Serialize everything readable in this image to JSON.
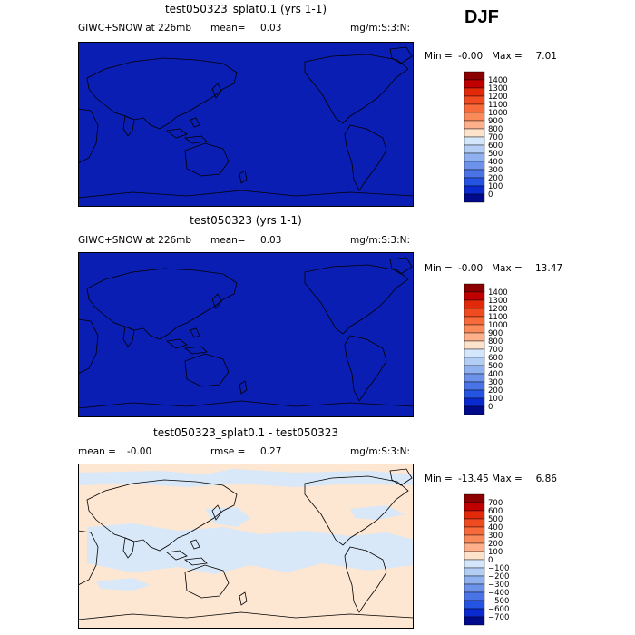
{
  "season": "DJF",
  "chart_data": [
    {
      "type": "heatmap",
      "title": "test050323_splat0.1 (yrs 1-1)",
      "field": "GIWC+SNOW at 226mb",
      "mean_label": "mean=",
      "mean": "0.03",
      "units": "mg/m:S:3:N:",
      "min_label": "Min =",
      "min": "-0.00",
      "max_label": "Max =",
      "max": "7.01",
      "levels": [
        "1400",
        "1300",
        "1200",
        "1100",
        "1000",
        "900",
        "800",
        "700",
        "600",
        "500",
        "400",
        "300",
        "200",
        "100",
        "0"
      ],
      "colors": [
        "#8b0000",
        "#c00000",
        "#e22a0a",
        "#f04a20",
        "#f76a3a",
        "#fb8a5a",
        "#fdb08a",
        "#fee3cc",
        "#d4e6fb",
        "#b3cdf5",
        "#8fb1ef",
        "#6c92ea",
        "#4a73e6",
        "#2454e1",
        "#0a2ad0",
        "#000a8a"
      ],
      "field_color": "#0a1eb4"
    },
    {
      "type": "heatmap",
      "title": "test050323 (yrs 1-1)",
      "field": "GIWC+SNOW at 226mb",
      "mean_label": "mean=",
      "mean": "0.03",
      "units": "mg/m:S:3:N:",
      "min_label": "Min =",
      "min": "-0.00",
      "max_label": "Max =",
      "max": "13.47",
      "levels": [
        "1400",
        "1300",
        "1200",
        "1100",
        "1000",
        "900",
        "800",
        "700",
        "600",
        "500",
        "400",
        "300",
        "200",
        "100",
        "0"
      ],
      "colors": [
        "#8b0000",
        "#c00000",
        "#e22a0a",
        "#f04a20",
        "#f76a3a",
        "#fb8a5a",
        "#fdb08a",
        "#fee3cc",
        "#d4e6fb",
        "#b3cdf5",
        "#8fb1ef",
        "#6c92ea",
        "#4a73e6",
        "#2454e1",
        "#0a2ad0",
        "#000a8a"
      ],
      "field_color": "#0a1eb4"
    },
    {
      "type": "heatmap",
      "title": "test050323_splat0.1 - test050323",
      "mean_label": "mean =",
      "mean": "-0.00",
      "rmse_label": "rmse =",
      "rmse": "0.27",
      "units": "mg/m:S:3:N:",
      "min_label": "Min =",
      "min": "-13.45",
      "max_label": "Max =",
      "max": "6.86",
      "levels": [
        "700",
        "600",
        "500",
        "400",
        "300",
        "200",
        "100",
        "0",
        "−100",
        "−200",
        "−300",
        "−400",
        "−500",
        "−600",
        "−700"
      ],
      "colors": [
        "#8b0000",
        "#c00000",
        "#e22a0a",
        "#f04a20",
        "#f76a3a",
        "#fb8a5a",
        "#fdb08a",
        "#fee3cc",
        "#d4e6fb",
        "#b3cdf5",
        "#8fb1ef",
        "#6c92ea",
        "#4a73e6",
        "#2454e1",
        "#0a2ad0",
        "#000a8a"
      ],
      "field_color": "#fde6d2",
      "secondary_color": "#d8e8f8"
    }
  ]
}
